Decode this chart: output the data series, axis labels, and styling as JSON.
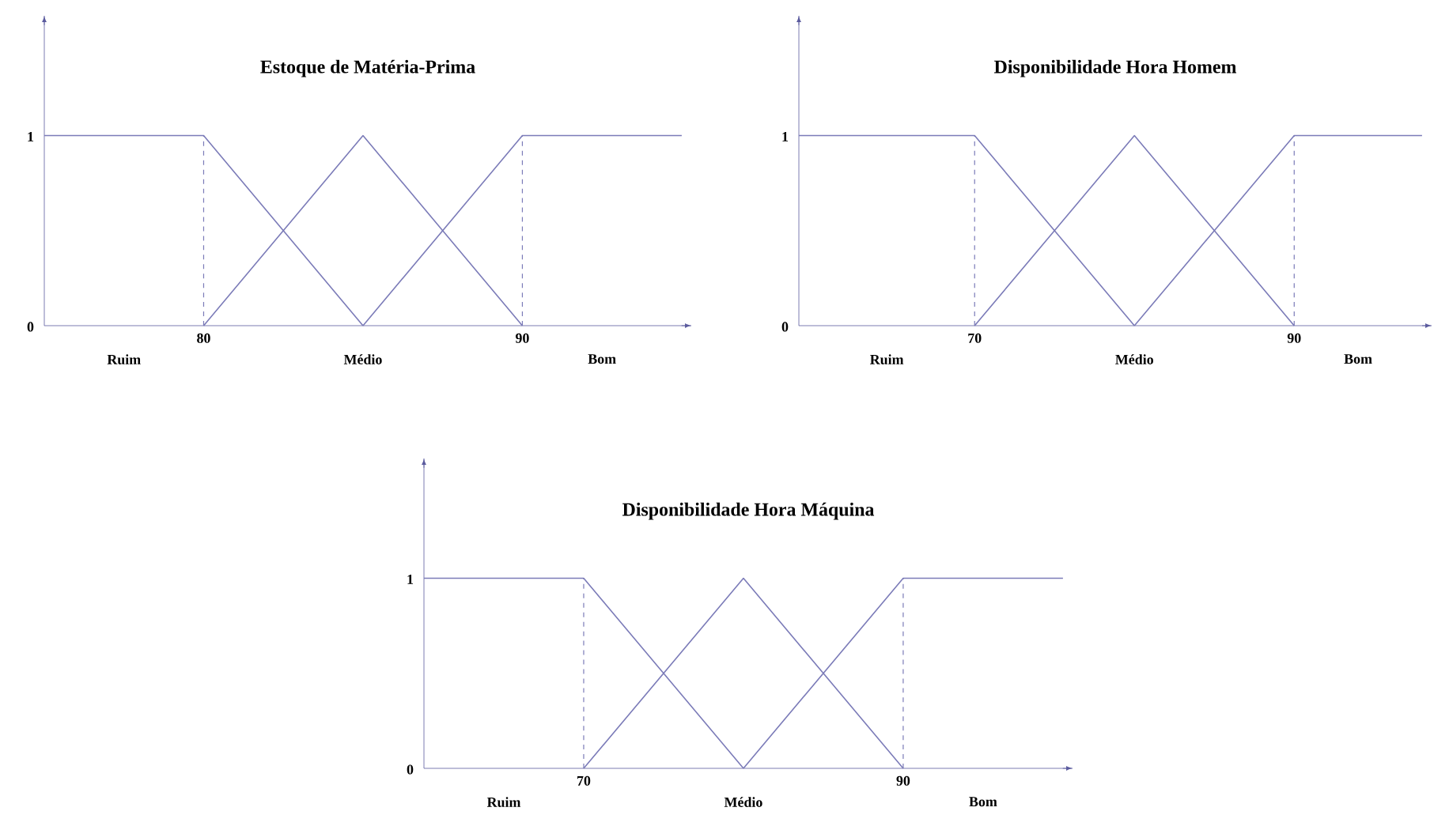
{
  "chart_data": [
    {
      "type": "line",
      "title": "Estoque de Matéria-Prima",
      "xlim": [
        75,
        95.3
      ],
      "ylim": [
        0,
        1.63
      ],
      "xticks": [
        80,
        90
      ],
      "yticks": [
        0,
        1
      ],
      "annotations": [
        "Ruim",
        "Médio",
        "Bom"
      ],
      "series": [
        {
          "color": "#7b7bb8",
          "x": [
            75,
            80,
            85
          ],
          "values": [
            1,
            1,
            0
          ]
        },
        {
          "color": "#7b7bb8",
          "x": [
            80,
            85,
            90
          ],
          "values": [
            0,
            1,
            0
          ]
        },
        {
          "color": "#7b7bb8",
          "x": [
            85,
            90,
            95
          ],
          "values": [
            0,
            1,
            1
          ]
        }
      ],
      "ref_lines": [
        {
          "axis": "x",
          "value": 80,
          "color": "#7b7bb8",
          "line_style": "dashed"
        },
        {
          "axis": "x",
          "value": 90,
          "color": "#7b7bb8",
          "line_style": "dashed"
        }
      ]
    },
    {
      "type": "line",
      "title": "Disponibilidade Hora Homem",
      "xlim": [
        59,
        98.6
      ],
      "ylim": [
        0,
        1.63
      ],
      "xticks": [
        70,
        90
      ],
      "yticks": [
        0,
        1
      ],
      "annotations": [
        "Ruim",
        "Médio",
        "Bom"
      ],
      "series": [
        {
          "color": "#7b7bb8",
          "x": [
            59,
            70,
            80
          ],
          "values": [
            1,
            1,
            0
          ]
        },
        {
          "color": "#7b7bb8",
          "x": [
            70,
            80,
            90
          ],
          "values": [
            0,
            1,
            0
          ]
        },
        {
          "color": "#7b7bb8",
          "x": [
            80,
            90,
            98
          ],
          "values": [
            0,
            1,
            1
          ]
        }
      ],
      "ref_lines": [
        {
          "axis": "x",
          "value": 70,
          "color": "#7b7bb8",
          "line_style": "dashed"
        },
        {
          "axis": "x",
          "value": 90,
          "color": "#7b7bb8",
          "line_style": "dashed"
        }
      ]
    },
    {
      "type": "line",
      "title": "Disponibilidade Hora Máquina",
      "xlim": [
        60,
        100.6
      ],
      "ylim": [
        0,
        1.63
      ],
      "xticks": [
        70,
        90
      ],
      "yticks": [
        0,
        1
      ],
      "annotations": [
        "Ruim",
        "Médio",
        "Bom"
      ],
      "series": [
        {
          "color": "#7b7bb8",
          "x": [
            60,
            70,
            80
          ],
          "values": [
            1,
            1,
            0
          ]
        },
        {
          "color": "#7b7bb8",
          "x": [
            70,
            80,
            90
          ],
          "values": [
            0,
            1,
            0
          ]
        },
        {
          "color": "#7b7bb8",
          "x": [
            80,
            90,
            100
          ],
          "values": [
            0,
            1,
            1
          ]
        }
      ],
      "ref_lines": [
        {
          "axis": "x",
          "value": 70,
          "color": "#7b7bb8",
          "line_style": "dashed"
        },
        {
          "axis": "x",
          "value": 90,
          "color": "#7b7bb8",
          "line_style": "dashed"
        }
      ]
    }
  ]
}
